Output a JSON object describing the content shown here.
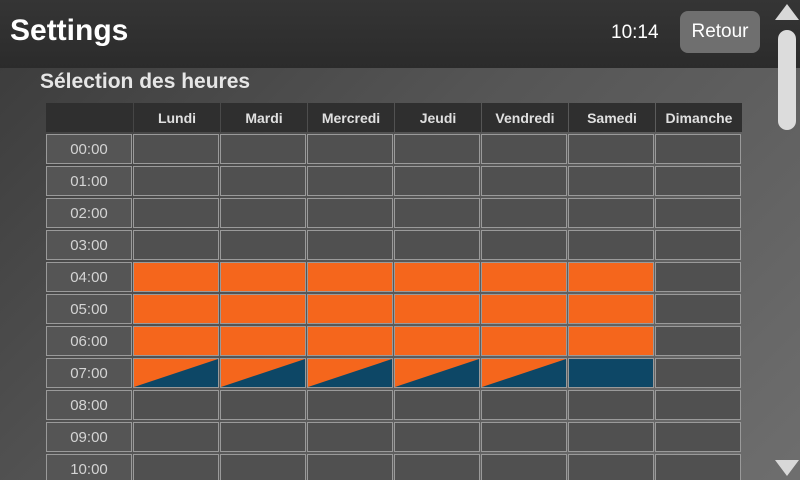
{
  "header": {
    "title": "Settings",
    "time": "10:14",
    "back_label": "Retour"
  },
  "section_title": "Sélection des heures",
  "colors": {
    "full": "#f5661c",
    "half": "#0d4766",
    "empty": "#505050"
  },
  "days": [
    "Lundi",
    "Mardi",
    "Mercredi",
    "Jeudi",
    "Vendredi",
    "Samedi",
    "Dimanche"
  ],
  "rows": [
    {
      "hour": "00:00",
      "slots": [
        "empty",
        "empty",
        "empty",
        "empty",
        "empty",
        "empty",
        "empty"
      ]
    },
    {
      "hour": "01:00",
      "slots": [
        "empty",
        "empty",
        "empty",
        "empty",
        "empty",
        "empty",
        "empty"
      ]
    },
    {
      "hour": "02:00",
      "slots": [
        "empty",
        "empty",
        "empty",
        "empty",
        "empty",
        "empty",
        "empty"
      ]
    },
    {
      "hour": "03:00",
      "slots": [
        "empty",
        "empty",
        "empty",
        "empty",
        "empty",
        "empty",
        "empty"
      ]
    },
    {
      "hour": "04:00",
      "slots": [
        "full",
        "full",
        "full",
        "full",
        "full",
        "full",
        "empty"
      ]
    },
    {
      "hour": "05:00",
      "slots": [
        "full",
        "full",
        "full",
        "full",
        "full",
        "full",
        "empty"
      ]
    },
    {
      "hour": "06:00",
      "slots": [
        "full",
        "full",
        "full",
        "full",
        "full",
        "full",
        "empty"
      ]
    },
    {
      "hour": "07:00",
      "slots": [
        "split",
        "split",
        "split",
        "split",
        "split",
        "half",
        "empty"
      ]
    },
    {
      "hour": "08:00",
      "slots": [
        "empty",
        "empty",
        "empty",
        "empty",
        "empty",
        "empty",
        "empty"
      ]
    },
    {
      "hour": "09:00",
      "slots": [
        "empty",
        "empty",
        "empty",
        "empty",
        "empty",
        "empty",
        "empty"
      ]
    },
    {
      "hour": "10:00",
      "slots": [
        "empty",
        "empty",
        "empty",
        "empty",
        "empty",
        "empty",
        "empty"
      ]
    }
  ]
}
